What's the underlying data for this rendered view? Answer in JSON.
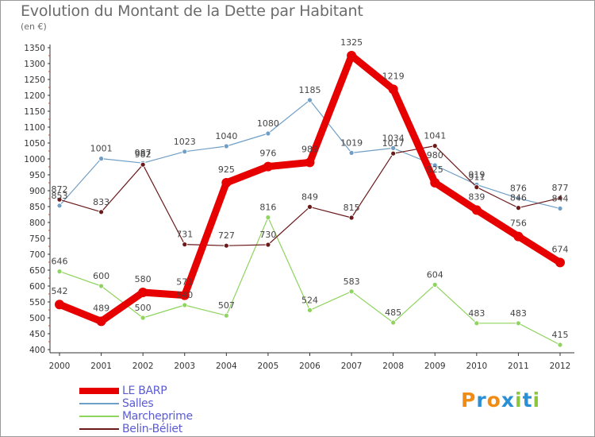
{
  "header": {
    "title": "Evolution du Montant de la Dette par Habitant",
    "subtitle": "(en €)"
  },
  "brand": {
    "letters": [
      "P",
      "r",
      "o",
      "x",
      "i",
      "t",
      "i"
    ],
    "colors": [
      "#f08c14",
      "#2b8fd6",
      "#f08c14",
      "#2b8fd6",
      "#8cc63f",
      "#2b8fd6",
      "#8cc63f"
    ]
  },
  "chart_data": {
    "type": "line",
    "x": [
      "2000",
      "2001",
      "2002",
      "2003",
      "2004",
      "2005",
      "2006",
      "2007",
      "2008",
      "2009",
      "2010",
      "2011",
      "2012"
    ],
    "ylim": [
      400,
      1350
    ],
    "yticks": [
      400,
      450,
      500,
      550,
      600,
      650,
      700,
      750,
      800,
      850,
      900,
      950,
      1000,
      1050,
      1100,
      1150,
      1200,
      1250,
      1300,
      1350
    ],
    "grid": false,
    "legend_position": "bottom-left",
    "series": [
      {
        "name": "LE BARP",
        "color": "#e60000",
        "values": [
          542,
          489,
          580,
          571,
          925,
          976,
          989,
          1325,
          1219,
          925,
          839,
          756,
          674
        ]
      },
      {
        "name": "Salles",
        "color": "#6f9ec6",
        "values": [
          853,
          1001,
          987,
          1023,
          1040,
          1080,
          1185,
          1019,
          1034,
          980,
          919,
          876,
          844
        ]
      },
      {
        "name": "Marcheprime",
        "color": "#8fd45e",
        "values": [
          646,
          600,
          500,
          540,
          507,
          816,
          524,
          583,
          485,
          604,
          483,
          483,
          415
        ]
      },
      {
        "name": "Belin-Béliet",
        "color": "#6b1a1a",
        "values": [
          872,
          833,
          982,
          731,
          727,
          730,
          849,
          815,
          1017,
          1041,
          911,
          846,
          877
        ]
      }
    ]
  }
}
